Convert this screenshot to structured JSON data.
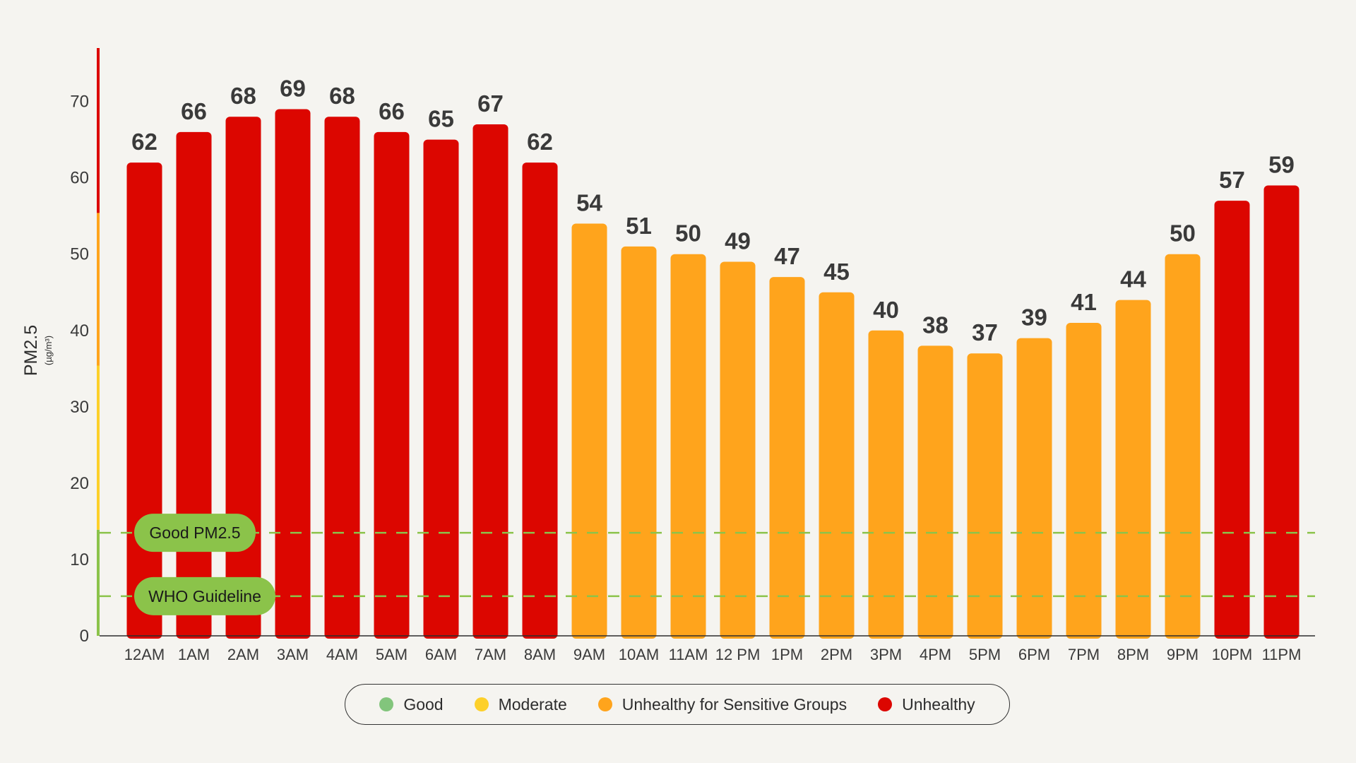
{
  "chart_data": {
    "type": "bar",
    "ylabel": "PM2.5",
    "yunit": "(µg/m³)",
    "ylim": [
      0,
      77
    ],
    "yticks": [
      0,
      10,
      20,
      30,
      40,
      50,
      60,
      70
    ],
    "categories": [
      "12AM",
      "1AM",
      "2AM",
      "3AM",
      "4AM",
      "5AM",
      "6AM",
      "7AM",
      "8AM",
      "9AM",
      "10AM",
      "11AM",
      "12 PM",
      "1PM",
      "2PM",
      "3PM",
      "4PM",
      "5PM",
      "6PM",
      "7PM",
      "8PM",
      "9PM",
      "10PM",
      "11PM"
    ],
    "values": [
      62,
      66,
      68,
      69,
      68,
      66,
      65,
      67,
      62,
      54,
      51,
      50,
      49,
      47,
      45,
      40,
      38,
      37,
      39,
      41,
      44,
      50,
      57,
      59
    ],
    "grid": false,
    "legend_position": "bottom",
    "thresholds": [
      {
        "name": "Good",
        "min": 0,
        "max": 13.9,
        "color": "#8bc34a"
      },
      {
        "name": "Moderate",
        "min": 13.9,
        "max": 35.4,
        "color": "#fdd02a"
      },
      {
        "name": "Unhealthy for Sensitive Groups",
        "min": 35.4,
        "max": 55.4,
        "color": "#ffa41c"
      },
      {
        "name": "Unhealthy",
        "min": 55.4,
        "max": 77,
        "color": "#dc0600"
      }
    ],
    "reference_lines": [
      {
        "label": "Good PM2.5",
        "value": 13.5,
        "color": "#8bc34a"
      },
      {
        "label": "WHO Guideline",
        "value": 5.2,
        "color": "#8bc34a"
      }
    ],
    "legend": [
      {
        "label": "Good",
        "color": "#82c57c"
      },
      {
        "label": "Moderate",
        "color": "#fdd02a"
      },
      {
        "label": "Unhealthy for Sensitive Groups",
        "color": "#ffa41c"
      },
      {
        "label": "Unhealthy",
        "color": "#dc0600"
      }
    ]
  }
}
